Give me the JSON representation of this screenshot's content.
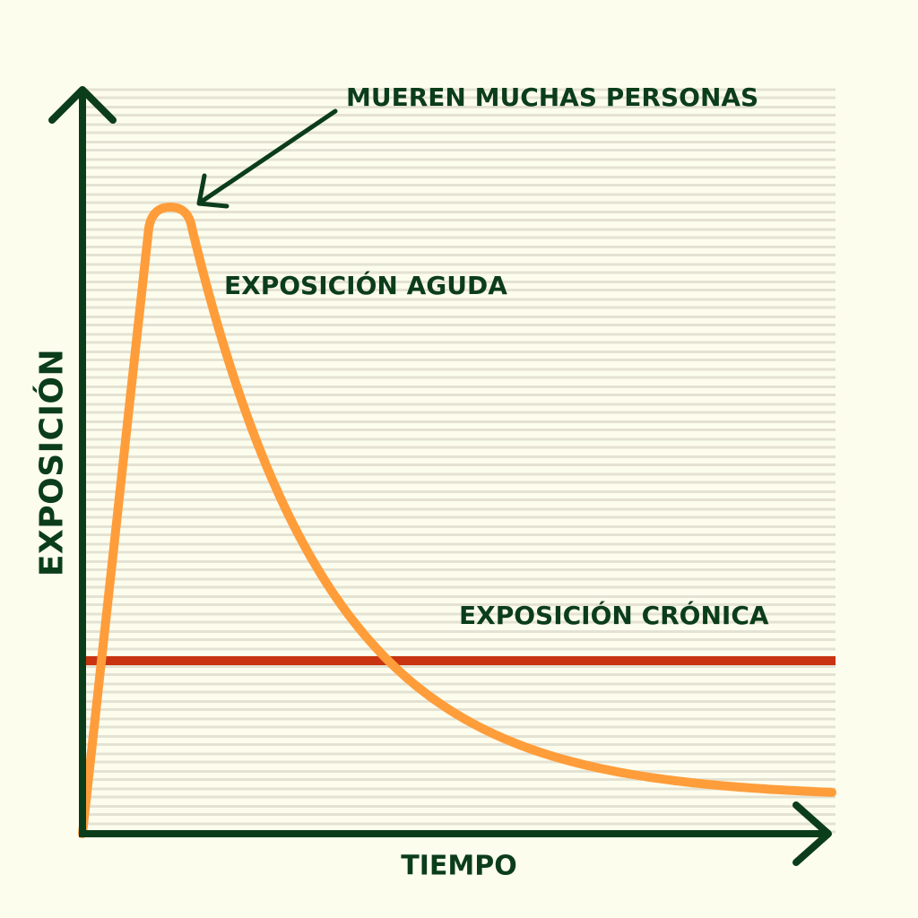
{
  "chart_data": {
    "type": "line",
    "title": "",
    "xlabel": "TIEMPO",
    "ylabel": "EXPOSICIÓN",
    "grid": true,
    "ticks": false,
    "series": [
      {
        "name": "EXPOSICIÓN AGUDA",
        "color": "#ff9d3a",
        "shape": "rapid rise to a peak, then exponential decay"
      },
      {
        "name": "EXPOSICIÓN CRÓNICA",
        "color": "#c83410",
        "shape": "constant level"
      }
    ],
    "annotations": [
      {
        "text": "MUEREN MUCHAS PERSONAS",
        "points_to": "peak of EXPOSICIÓN AGUDA"
      }
    ]
  },
  "colors": {
    "background": "#fdfdee",
    "axis": "#0b3d1a",
    "grid": "#e4e2d2",
    "acute": "#ff9d3a",
    "chronic": "#c83410",
    "text": "#0b3d1a"
  }
}
